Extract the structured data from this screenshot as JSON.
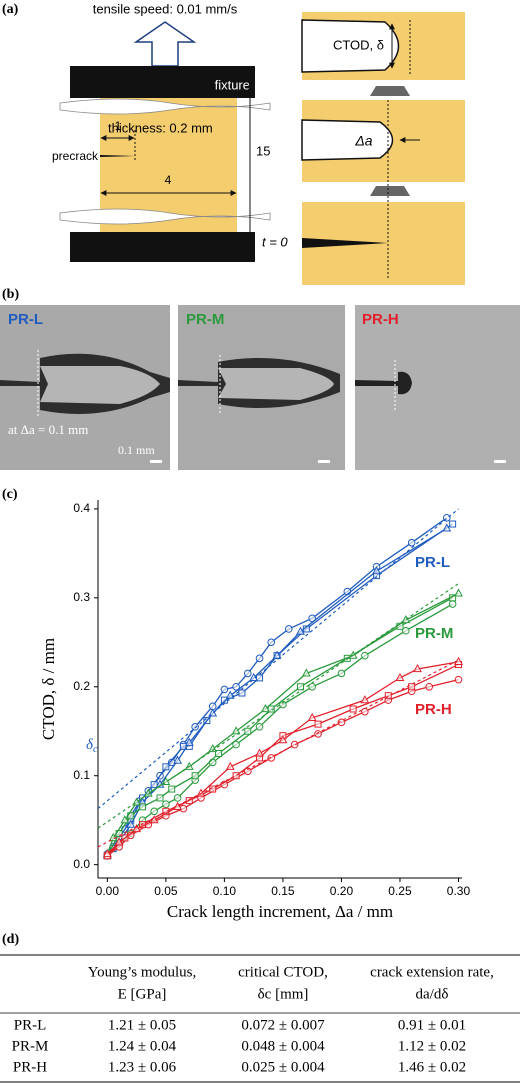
{
  "panel_a": {
    "label": "(a)",
    "speed": "tensile speed: 0.01 mm/s",
    "fixture": "fixture",
    "thickness": "thickness: 0.2 mm",
    "precrack": "precrack",
    "dim_1": "1",
    "dim_4": "4",
    "dim_15": "15",
    "ctod": "CTOD, δ",
    "delta_a": "Δa",
    "t0": "t = 0"
  },
  "panel_b": {
    "label": "(b)",
    "images": [
      "PR-L",
      "PR-M",
      "PR-H"
    ],
    "note": "at Δa = 0.1 mm",
    "scale": "0.1 mm"
  },
  "panel_c": {
    "label": "(c)"
  },
  "chart_data": {
    "type": "line",
    "x_label": "Crack length increment, Δa / mm",
    "y_label": "CTOD, δ / mm",
    "xlim": [
      -0.008,
      0.303
    ],
    "ylim": [
      -0.015,
      0.41
    ],
    "xticks": [
      {
        "value": 0,
        "label": "0.00"
      },
      0.05,
      {
        "value": 0.1,
        "label": "0.10"
      },
      0.15,
      {
        "value": 0.2,
        "label": "0.20"
      },
      0.25,
      {
        "value": 0.3,
        "label": "0.30"
      }
    ],
    "yticks": [
      {
        "value": 0,
        "label": "0.0"
      },
      0.1,
      0.2,
      0.3,
      0.4
    ],
    "labels": [
      {
        "text": "PR-L",
        "color": "#1f5cbf"
      },
      {
        "text": "PR-M",
        "color": "#2a9a3c"
      },
      {
        "text": "PR-H",
        "color": "#e2202b"
      }
    ],
    "delta_c": {
      "symbol": "δ",
      "subscript": "c",
      "color": "#1f5cbf"
    },
    "series": [
      {
        "color": "#1f5cbf",
        "marker": "circle",
        "x": [
          0,
          0.005,
          0.01,
          0.015,
          0.02,
          0.028,
          0.035,
          0.045,
          0.055,
          0.065,
          0.075,
          0.09,
          0.1,
          0.11,
          0.12,
          0.13,
          0.14,
          0.155,
          0.175,
          0.205,
          0.23,
          0.26,
          0.29
        ],
        "values": [
          0.012,
          0.02,
          0.03,
          0.04,
          0.055,
          0.072,
          0.083,
          0.1,
          0.115,
          0.135,
          0.155,
          0.178,
          0.197,
          0.2,
          0.215,
          0.232,
          0.25,
          0.265,
          0.277,
          0.307,
          0.335,
          0.362,
          0.39
        ]
      },
      {
        "color": "#1f5cbf",
        "marker": "square",
        "x": [
          0,
          0.005,
          0.01,
          0.02,
          0.03,
          0.04,
          0.05,
          0.065,
          0.07,
          0.085,
          0.1,
          0.115,
          0.13,
          0.145,
          0.17,
          0.23,
          0.295
        ],
        "values": [
          0.01,
          0.018,
          0.03,
          0.05,
          0.075,
          0.09,
          0.11,
          0.133,
          0.133,
          0.162,
          0.185,
          0.193,
          0.21,
          0.235,
          0.265,
          0.325,
          0.383
        ]
      },
      {
        "color": "#1f5cbf",
        "marker": "triangle",
        "x": [
          0,
          0.01,
          0.02,
          0.03,
          0.045,
          0.06,
          0.07,
          0.09,
          0.105,
          0.125,
          0.145,
          0.165,
          0.23,
          0.29
        ],
        "values": [
          0.01,
          0.025,
          0.045,
          0.07,
          0.09,
          0.117,
          0.137,
          0.17,
          0.19,
          0.21,
          0.235,
          0.262,
          0.33,
          0.378
        ]
      },
      {
        "color": "#2a9a3c",
        "marker": "circle",
        "x": [
          0,
          0.01,
          0.02,
          0.03,
          0.04,
          0.05,
          0.06,
          0.075,
          0.09,
          0.11,
          0.13,
          0.15,
          0.175,
          0.2,
          0.22,
          0.255,
          0.295
        ],
        "values": [
          0.01,
          0.02,
          0.035,
          0.05,
          0.06,
          0.068,
          0.075,
          0.095,
          0.115,
          0.135,
          0.155,
          0.18,
          0.2,
          0.215,
          0.235,
          0.263,
          0.293
        ]
      },
      {
        "color": "#2a9a3c",
        "marker": "square",
        "x": [
          0,
          0.01,
          0.02,
          0.03,
          0.045,
          0.055,
          0.075,
          0.095,
          0.12,
          0.14,
          0.165,
          0.205,
          0.25,
          0.295
        ],
        "values": [
          0.01,
          0.035,
          0.055,
          0.065,
          0.075,
          0.085,
          0.1,
          0.125,
          0.15,
          0.175,
          0.2,
          0.232,
          0.268,
          0.3
        ]
      },
      {
        "color": "#2a9a3c",
        "marker": "triangle",
        "x": [
          0,
          0.005,
          0.015,
          0.025,
          0.035,
          0.05,
          0.07,
          0.09,
          0.11,
          0.135,
          0.17,
          0.21,
          0.255,
          0.3
        ],
        "values": [
          0.012,
          0.03,
          0.05,
          0.07,
          0.08,
          0.093,
          0.11,
          0.13,
          0.15,
          0.175,
          0.215,
          0.235,
          0.275,
          0.305
        ]
      },
      {
        "color": "#e2202b",
        "marker": "circle",
        "x": [
          0,
          0.01,
          0.02,
          0.035,
          0.05,
          0.065,
          0.08,
          0.1,
          0.12,
          0.14,
          0.16,
          0.18,
          0.2,
          0.22,
          0.24,
          0.26,
          0.275,
          0.3
        ],
        "values": [
          0.01,
          0.02,
          0.033,
          0.045,
          0.055,
          0.063,
          0.075,
          0.09,
          0.105,
          0.12,
          0.135,
          0.147,
          0.16,
          0.172,
          0.185,
          0.195,
          0.2,
          0.208
        ]
      },
      {
        "color": "#e2202b",
        "marker": "square",
        "x": [
          0,
          0.015,
          0.03,
          0.05,
          0.07,
          0.09,
          0.11,
          0.13,
          0.15,
          0.18,
          0.21,
          0.24,
          0.26,
          0.3
        ],
        "values": [
          0.01,
          0.03,
          0.045,
          0.06,
          0.072,
          0.085,
          0.1,
          0.12,
          0.145,
          0.158,
          0.175,
          0.19,
          0.2,
          0.225
        ]
      },
      {
        "color": "#e2202b",
        "marker": "triangle",
        "x": [
          0,
          0.01,
          0.025,
          0.04,
          0.06,
          0.08,
          0.105,
          0.13,
          0.15,
          0.175,
          0.22,
          0.25,
          0.265,
          0.3
        ],
        "values": [
          0.012,
          0.025,
          0.04,
          0.05,
          0.065,
          0.08,
          0.11,
          0.125,
          0.14,
          0.165,
          0.185,
          0.21,
          0.22,
          0.228
        ]
      },
      {
        "color": "#1f5cbf",
        "marker": "none",
        "dashed": true,
        "x": [
          -0.008,
          0.3
        ],
        "values": [
          0.063,
          0.4
        ]
      },
      {
        "color": "#2a9a3c",
        "marker": "none",
        "dashed": true,
        "x": [
          -0.008,
          0.3
        ],
        "values": [
          0.041,
          0.316
        ]
      },
      {
        "color": "#e2202b",
        "marker": "none",
        "dashed": true,
        "x": [
          -0.008,
          0.3
        ],
        "values": [
          0.02,
          0.23
        ]
      }
    ]
  },
  "table": {
    "label": "(d)",
    "columns": [
      [
        "Young’s modulus,",
        "E [GPa]"
      ],
      [
        "critical CTOD,",
        "δc [mm]"
      ],
      [
        "crack extension rate,",
        "da/dδ"
      ]
    ],
    "rows": [
      [
        "PR-L",
        "1.21 ± 0.05",
        "0.072 ± 0.007",
        "0.91 ± 0.01"
      ],
      [
        "PR-M",
        "1.24 ± 0.04",
        "0.048 ± 0.004",
        "1.12 ± 0.02"
      ],
      [
        "PR-H",
        "1.23 ± 0.06",
        "0.025 ± 0.004",
        "1.46 ± 0.02"
      ]
    ]
  }
}
